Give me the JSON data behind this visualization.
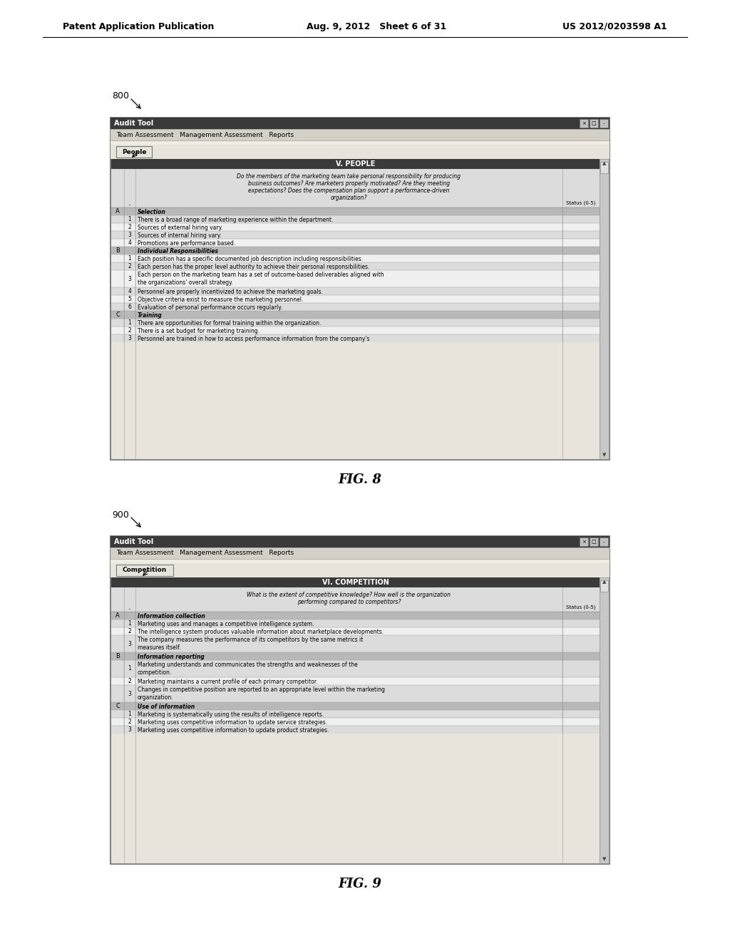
{
  "header_left": "Patent Application Publication",
  "header_mid": "Aug. 9, 2012   Sheet 6 of 31",
  "header_right": "US 2012/0203598 A1",
  "fig8_label": "800",
  "fig8_caption": "FIG. 8",
  "fig9_label": "900",
  "fig9_caption": "FIG. 9",
  "window_title": "Audit Tool",
  "menu_items": "Team Assessment   Management Assessment   Reports",
  "fig8_tab": "People",
  "fig8_section_title": "V. PEOPLE",
  "fig8_question": "Do the members of the marketing team take personal responsibility for producing\nbusiness outcomes? Are marketers properly motivated? Are they meeting\nexpectations? Does the compensation plan support a performance-driven\norganization?",
  "fig8_status_col": "Status (0-5)",
  "fig8_rows": [
    {
      "sec": "A",
      "num": "",
      "text": "Selection",
      "header": true
    },
    {
      "sec": "",
      "num": "1",
      "text": "There is a broad range of marketing experience within the department.",
      "header": false
    },
    {
      "sec": "",
      "num": "2",
      "text": "Sources of external hiring vary.",
      "header": false
    },
    {
      "sec": "",
      "num": "3",
      "text": "Sources of internal hiring vary.",
      "header": false
    },
    {
      "sec": "",
      "num": "4",
      "text": "Promotions are performance based.",
      "header": false
    },
    {
      "sec": "B",
      "num": "",
      "text": "Individual Responsibilities",
      "header": true
    },
    {
      "sec": "",
      "num": "1",
      "text": "Each position has a specific documented job description including responsibilities.",
      "header": false
    },
    {
      "sec": "",
      "num": "2",
      "text": "Each person has the proper level authority to achieve their personal responsibilities.",
      "header": false
    },
    {
      "sec": "",
      "num": "3",
      "text": "Each person on the marketing team has a set of outcome-based deliverables aligned with\nthe organizations' overall strategy.",
      "header": false
    },
    {
      "sec": "",
      "num": "4",
      "text": "Personnel are properly incentivized to achieve the marketing goals.",
      "header": false
    },
    {
      "sec": "",
      "num": "5",
      "text": "Objective criteria exist to measure the marketing personnel.",
      "header": false
    },
    {
      "sec": "",
      "num": "6",
      "text": "Evaluation of personal performance occurs regularly.",
      "header": false
    },
    {
      "sec": "C",
      "num": "",
      "text": "Training",
      "header": true
    },
    {
      "sec": "",
      "num": "1",
      "text": "There are opportunities for formal training within the organization.",
      "header": false
    },
    {
      "sec": "",
      "num": "2",
      "text": "There is a set budget for marketing training.",
      "header": false
    },
    {
      "sec": "",
      "num": "3",
      "text": "Personnel are trained in how to access performance information from the company's",
      "header": false
    }
  ],
  "fig9_tab": "Competition",
  "fig9_section_title": "VI. COMPETITION",
  "fig9_question": "What is the extent of competitive knowledge? How well is the organization\nperforming compared to competitors?",
  "fig9_status_col": "Status (0-5)",
  "fig9_rows": [
    {
      "sec": "A",
      "num": "",
      "text": "Information collection",
      "header": true
    },
    {
      "sec": "",
      "num": "1",
      "text": "Marketing uses and manages a competitive intelligence system.",
      "header": false
    },
    {
      "sec": "",
      "num": "2",
      "text": "The intelligence system produces valuable information about marketplace developments.",
      "header": false
    },
    {
      "sec": "",
      "num": "3",
      "text": "The company measures the performance of its competitors by the same metrics it\nmeasures itself.",
      "header": false
    },
    {
      "sec": "B",
      "num": "",
      "text": "Information reporting",
      "header": true
    },
    {
      "sec": "",
      "num": "1",
      "text": "Marketing understands and communicates the strengths and weaknesses of the\ncompetition.",
      "header": false
    },
    {
      "sec": "",
      "num": "2",
      "text": "Marketing maintains a current profile of each primary competitor.",
      "header": false
    },
    {
      "sec": "",
      "num": "3",
      "text": "Changes in competitive position are reported to an appropriate level within the marketing\norganization.",
      "header": false
    },
    {
      "sec": "C",
      "num": "",
      "text": "Use of information",
      "header": true
    },
    {
      "sec": "",
      "num": "1",
      "text": "Marketing is systematically using the results of intelligence reports.",
      "header": false
    },
    {
      "sec": "",
      "num": "2",
      "text": "Marketing uses competitive information to update service strategies.",
      "header": false
    },
    {
      "sec": "",
      "num": "3",
      "text": "Marketing uses competitive information to update product strategies.",
      "header": false
    }
  ],
  "bg_color": "#ffffff",
  "window_title_bg": "#3a3a3a",
  "window_title_color": "#ffffff",
  "menu_bg": "#d4d0c8",
  "section_header_bg": "#3a3a3a",
  "section_header_color": "#ffffff",
  "row_header_bg": "#b8b8b8",
  "row_alt_bg": "#dcdcdc",
  "row_bg": "#f0f0f0",
  "tab_bg": "#e8e4dc",
  "tab_border": "#777777",
  "question_bg": "#dcdcdc",
  "grid_color": "#999999",
  "window_border": "#666666",
  "window_inner_bg": "#e8e4dc"
}
